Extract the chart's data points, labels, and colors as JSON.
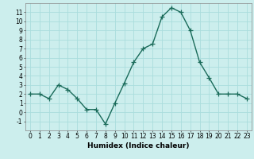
{
  "x": [
    0,
    1,
    2,
    3,
    4,
    5,
    6,
    7,
    8,
    9,
    10,
    11,
    12,
    13,
    14,
    15,
    16,
    17,
    18,
    19,
    20,
    21,
    22,
    23
  ],
  "y": [
    2,
    2,
    1.5,
    3,
    2.5,
    1.5,
    0.3,
    0.3,
    -1.3,
    1,
    3.2,
    5.5,
    7,
    7.5,
    10.5,
    11.5,
    11,
    9,
    5.5,
    3.8,
    2,
    2,
    2,
    1.5
  ],
  "line_color": "#1a6b5a",
  "marker": "+",
  "marker_size": 4,
  "linewidth": 1.0,
  "bg_color": "#cceeed",
  "grid_color": "#aadddd",
  "xlabel": "Humidex (Indice chaleur)",
  "xlim": [
    -0.5,
    23.5
  ],
  "ylim": [
    -2,
    12
  ],
  "yticks": [
    -1,
    0,
    1,
    2,
    3,
    4,
    5,
    6,
    7,
    8,
    9,
    10,
    11
  ],
  "xticks": [
    0,
    1,
    2,
    3,
    4,
    5,
    6,
    7,
    8,
    9,
    10,
    11,
    12,
    13,
    14,
    15,
    16,
    17,
    18,
    19,
    20,
    21,
    22,
    23
  ],
  "tick_fontsize": 5.5,
  "xlabel_fontsize": 6.5
}
